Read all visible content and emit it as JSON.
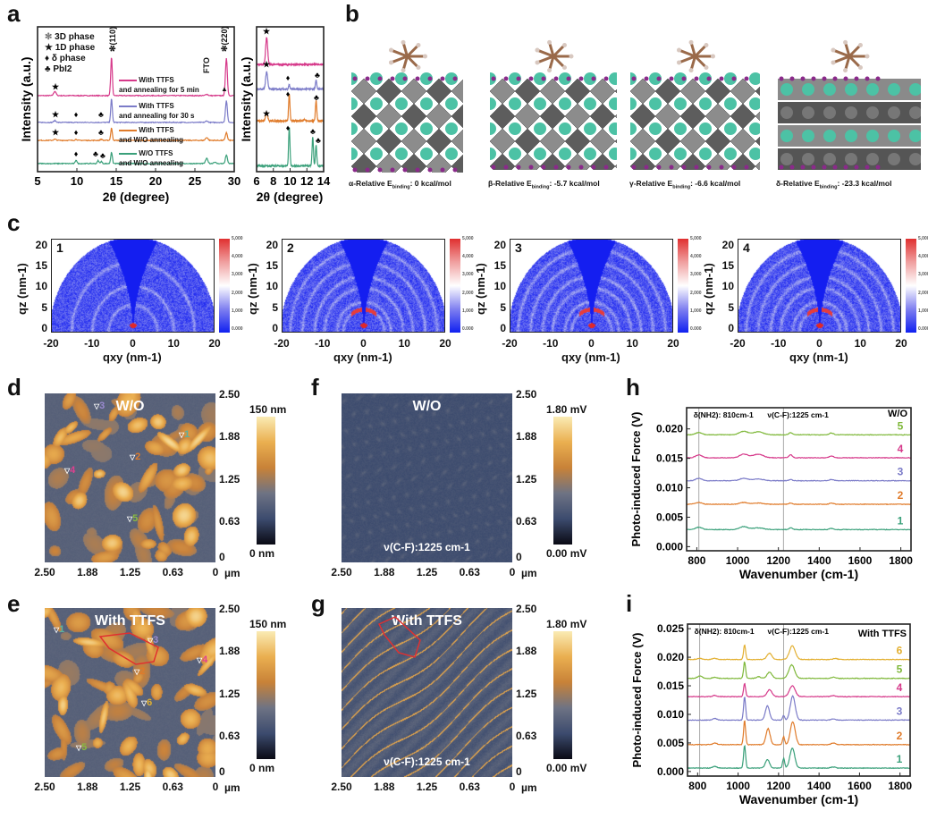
{
  "panel_labels": [
    "a",
    "b",
    "c",
    "d",
    "e",
    "f",
    "g",
    "h",
    "i"
  ],
  "colors": {
    "green": "#3aa07a",
    "orange": "#e07b2a",
    "purple": "#7b7bc8",
    "pink": "#d6398a",
    "lime": "#7fb83a",
    "yellow": "#e3b032",
    "gray_line": "#999999"
  },
  "panel_a": {
    "legend": [
      {
        "symbol": "asterisk-icon",
        "label": "3D phase"
      },
      {
        "symbol": "star-icon",
        "label": "1D phase"
      },
      {
        "symbol": "dot-icon",
        "label": "δ phase"
      },
      {
        "symbol": "club-icon",
        "label": "PbI2"
      }
    ],
    "annotations": {
      "p110": "(110)",
      "p220": "(220)",
      "fto": "FTO"
    },
    "series_labels": [
      {
        "line1": "With TTFS",
        "line2": "and annealing for 5 min"
      },
      {
        "line1": "With TTFS",
        "line2": "and annealing for 30 s"
      },
      {
        "line1": "With TTFS",
        "line2": "and W/O annealing"
      },
      {
        "line1": "W/O TTFS",
        "line2": "and W/O annealing"
      }
    ]
  },
  "panel_b": {
    "captions": [
      {
        "prefix": "α-Relative E",
        "sub": "binding",
        "suffix": ": 0 kcal/mol"
      },
      {
        "prefix": "β-Relative E",
        "sub": "binding",
        "suffix": ": -5.7 kcal/mol"
      },
      {
        "prefix": "γ-Relative E",
        "sub": "binding",
        "suffix": ": -6.6 kcal/mol"
      },
      {
        "prefix": "δ-Relative E",
        "sub": "binding",
        "suffix": ": -23.3 kcal/mol"
      }
    ]
  },
  "panel_c": {
    "maps": [
      "1",
      "2",
      "3",
      "4"
    ],
    "xlabel": "qxy (nm-1)",
    "ylabel": "qz (nm-1)",
    "xticks": [
      "-20",
      "-10",
      "0",
      "10",
      "20"
    ],
    "yticks": [
      "0",
      "5",
      "10",
      "15",
      "20"
    ],
    "colorbar_ticks": [
      "5,000",
      "4,000",
      "3,000",
      "2,000",
      "1,000",
      "0.000"
    ]
  },
  "afm": {
    "xticks": [
      "2.50",
      "1.88",
      "1.25",
      "0.63",
      "0"
    ],
    "xunit": "µm",
    "yticks": [
      "2.50",
      "1.88",
      "1.25",
      "0.63",
      "0"
    ],
    "d": {
      "title": "W/O",
      "cbar_max": "150 nm",
      "cbar_min": "0 nm",
      "markers": [
        "1",
        "2",
        "3",
        "4",
        "5"
      ]
    },
    "e": {
      "title": "With TTFS",
      "cbar_max": "150 nm",
      "cbar_min": "0 nm",
      "markers": [
        "1",
        "2",
        "3",
        "4",
        "5",
        "6"
      ]
    },
    "f": {
      "title": "W/O",
      "cbar_max": "1.80 mV",
      "cbar_min": "0.00 mV",
      "note": "ν(C-F):1225 cm-1"
    },
    "g": {
      "title": "With TTFS",
      "cbar_max": "1.80 mV",
      "cbar_min": "0.00 mV",
      "note": "ν(C-F):1225 cm-1"
    }
  },
  "chart_data": [
    {
      "id": "a-main",
      "type": "line",
      "xlabel": "2θ (degree)",
      "ylabel": "Intensity (a.u.)",
      "xlim": [
        5,
        30
      ],
      "ylim": [
        0,
        10
      ],
      "xticks": [
        5,
        10,
        15,
        20,
        25,
        30
      ],
      "grid": false,
      "series": [
        {
          "name": "With TTFS and annealing for 5 min",
          "color": "#d6398a",
          "baseline": 5.25,
          "peaks": [
            [
              7.2,
              0.3,
              0.15
            ],
            [
              14.4,
              2.7,
              0.1
            ],
            [
              26.5,
              0.1,
              0.15
            ],
            [
              29.0,
              2.6,
              0.12
            ]
          ]
        },
        {
          "name": "With TTFS and annealing for 30 s",
          "color": "#7b7bc8",
          "baseline": 3.4,
          "peaks": [
            [
              7.2,
              0.12,
              0.15
            ],
            [
              14.4,
              1.64,
              0.1
            ],
            [
              26.5,
              0.1,
              0.15
            ],
            [
              29.0,
              1.5,
              0.12
            ]
          ]
        },
        {
          "name": "With TTFS and W/O annealing",
          "color": "#e07b2a",
          "baseline": 2.16,
          "peaks": [
            [
              7.2,
              0.08,
              0.15
            ],
            [
              9.9,
              0.08,
              0.12
            ],
            [
              13.1,
              0.08,
              0.12
            ],
            [
              14.4,
              0.86,
              0.1
            ],
            [
              26.5,
              0.2,
              0.15
            ],
            [
              29.0,
              0.55,
              0.12
            ]
          ]
        },
        {
          "name": "W/O TTFS and W/O annealing",
          "color": "#3aa07a",
          "baseline": 0.56,
          "peaks": [
            [
              9.9,
              0.25,
              0.1
            ],
            [
              12.7,
              0.2,
              0.1
            ],
            [
              13.1,
              0.15,
              0.1
            ],
            [
              14.4,
              0.8,
              0.1
            ],
            [
              26.5,
              0.35,
              0.15
            ],
            [
              27.5,
              0.1,
              0.15
            ],
            [
              29.0,
              0.6,
              0.12
            ]
          ]
        }
      ]
    },
    {
      "id": "a-inset",
      "type": "line",
      "xlabel": "2θ (degree)",
      "ylabel": "Intensity (a.u.)",
      "xlim": [
        6,
        14
      ],
      "ylim": [
        0,
        10
      ],
      "xticks": [
        6,
        8,
        10,
        12,
        14
      ],
      "grid": false,
      "series": [
        {
          "color": "#d6398a",
          "baseline": 7.4,
          "peaks": [
            [
              7.2,
              1.85,
              0.12
            ]
          ]
        },
        {
          "color": "#7b7bc8",
          "baseline": 5.7,
          "peaks": [
            [
              7.2,
              1.2,
              0.12
            ],
            [
              9.9,
              0.3,
              0.08
            ],
            [
              13.1,
              0.6,
              0.08
            ]
          ]
        },
        {
          "color": "#e07b2a",
          "baseline": 3.5,
          "peaks": [
            [
              7.2,
              0.6,
              0.12
            ],
            [
              9.9,
              1.85,
              0.08
            ],
            [
              11.7,
              0.1,
              0.1
            ],
            [
              13.1,
              1.4,
              0.08
            ]
          ]
        },
        {
          "color": "#3aa07a",
          "baseline": 0.4,
          "peaks": [
            [
              9.9,
              2.65,
              0.08
            ],
            [
              12.7,
              2.0,
              0.08
            ],
            [
              13.1,
              1.4,
              0.08
            ]
          ]
        }
      ]
    },
    {
      "id": "h",
      "type": "line",
      "title": "W/O",
      "xlabel": "Wavenumber (cm-1)",
      "ylabel": "Photo-induced Force (V)",
      "xlim": [
        750,
        1850
      ],
      "ylim": [
        -0.0007,
        0.0236
      ],
      "xticks": [
        800,
        1000,
        1200,
        1400,
        1600,
        1800
      ],
      "yticks": [
        "0.000",
        "0.005",
        "0.010",
        "0.015",
        "0.020"
      ],
      "grid": false,
      "vlines": [
        {
          "x": 810,
          "label": "δ(NH2): 810cm-1"
        },
        {
          "x": 1225,
          "label": "ν(C-F):1225 cm-1"
        }
      ],
      "series": [
        {
          "name": "1",
          "color": "#3aa07a",
          "baseline": 0.0029,
          "peaks": [
            [
              810,
              0.0004,
              15
            ],
            [
              1030,
              0.0005,
              20
            ],
            [
              1100,
              0.0003,
              25
            ],
            [
              1260,
              0.0003,
              8
            ],
            [
              1460,
              0.0002,
              10
            ]
          ]
        },
        {
          "name": "2",
          "color": "#e07b2a",
          "baseline": 0.0072,
          "peaks": [
            [
              810,
              0.0003,
              15
            ],
            [
              1030,
              0.0003,
              20
            ],
            [
              1100,
              0.0002,
              25
            ],
            [
              1260,
              0.0002,
              8
            ],
            [
              1460,
              0.0002,
              10
            ]
          ]
        },
        {
          "name": "3",
          "color": "#7b7bc8",
          "baseline": 0.0112,
          "peaks": [
            [
              810,
              0.0004,
              15
            ],
            [
              1030,
              0.0004,
              20
            ],
            [
              1100,
              0.0003,
              25
            ],
            [
              1260,
              0.0002,
              8
            ],
            [
              1460,
              0.0002,
              10
            ]
          ]
        },
        {
          "name": "4",
          "color": "#d6398a",
          "baseline": 0.0151,
          "peaks": [
            [
              810,
              0.0005,
              15
            ],
            [
              1030,
              0.0006,
              20
            ],
            [
              1100,
              0.0006,
              25
            ],
            [
              1260,
              0.0005,
              8
            ],
            [
              1460,
              0.0003,
              10
            ]
          ]
        },
        {
          "name": "5",
          "color": "#7fb83a",
          "baseline": 0.019,
          "peaks": [
            [
              810,
              0.0004,
              15
            ],
            [
              1030,
              0.0006,
              20
            ],
            [
              1100,
              0.0005,
              25
            ],
            [
              1260,
              0.0004,
              8
            ],
            [
              1460,
              0.0003,
              10
            ]
          ]
        }
      ]
    },
    {
      "id": "i",
      "type": "line",
      "title": "With TTFS",
      "xlabel": "Wavenumber (cm-1)",
      "ylabel": "Photo-induced Force (V)",
      "xlim": [
        750,
        1850
      ],
      "ylim": [
        -0.0008,
        0.0258
      ],
      "xticks": [
        800,
        1000,
        1200,
        1400,
        1600,
        1800
      ],
      "yticks": [
        "0.000",
        "0.005",
        "0.010",
        "0.015",
        "0.020",
        "0.025"
      ],
      "grid": false,
      "vlines": [
        {
          "x": 810,
          "label": "δ(NH2): 810cm-1"
        },
        {
          "x": 1225,
          "label": "ν(C-F):1225 cm-1"
        }
      ],
      "series": [
        {
          "name": "1",
          "color": "#3aa07a",
          "baseline": 0.0006,
          "peaks": [
            [
              885,
              0.0003,
              10
            ],
            [
              1032,
              0.004,
              5
            ],
            [
              1145,
              0.0015,
              10
            ],
            [
              1225,
              0.0017,
              5
            ],
            [
              1268,
              0.0035,
              12
            ],
            [
              1470,
              0.0002,
              10
            ]
          ]
        },
        {
          "name": "2",
          "color": "#e07b2a",
          "baseline": 0.0047,
          "peaks": [
            [
              885,
              0.0003,
              10
            ],
            [
              1032,
              0.0042,
              5
            ],
            [
              1148,
              0.0028,
              10
            ],
            [
              1225,
              0.0014,
              5
            ],
            [
              1270,
              0.004,
              12
            ],
            [
              1470,
              0.0003,
              10
            ]
          ]
        },
        {
          "name": "3",
          "color": "#7b7bc8",
          "baseline": 0.009,
          "peaks": [
            [
              885,
              0.0003,
              10
            ],
            [
              1032,
              0.0041,
              5
            ],
            [
              1145,
              0.0025,
              10
            ],
            [
              1225,
              0.0008,
              5
            ],
            [
              1270,
              0.0042,
              12
            ],
            [
              1470,
              0.0002,
              10
            ]
          ]
        },
        {
          "name": "4",
          "color": "#d6398a",
          "baseline": 0.0131,
          "peaks": [
            [
              885,
              0.0002,
              10
            ],
            [
              1032,
              0.0023,
              5
            ],
            [
              1155,
              0.0012,
              12
            ],
            [
              1268,
              0.0019,
              14
            ],
            [
              1470,
              0.0002,
              10
            ]
          ]
        },
        {
          "name": "5",
          "color": "#7fb83a",
          "baseline": 0.0163,
          "peaks": [
            [
              810,
              0.0004,
              12
            ],
            [
              885,
              0.0002,
              10
            ],
            [
              1032,
              0.0029,
              5
            ],
            [
              1100,
              0.0003,
              10
            ],
            [
              1155,
              0.0011,
              12
            ],
            [
              1265,
              0.0024,
              14
            ],
            [
              1470,
              0.0002,
              10
            ]
          ]
        },
        {
          "name": "6",
          "color": "#e3b032",
          "baseline": 0.0196,
          "peaks": [
            [
              810,
              0.0002,
              12
            ],
            [
              885,
              0.0002,
              10
            ],
            [
              1032,
              0.0026,
              5
            ],
            [
              1155,
              0.0011,
              12
            ],
            [
              1268,
              0.0024,
              14
            ],
            [
              1480,
              0.0002,
              10
            ]
          ]
        }
      ]
    }
  ]
}
